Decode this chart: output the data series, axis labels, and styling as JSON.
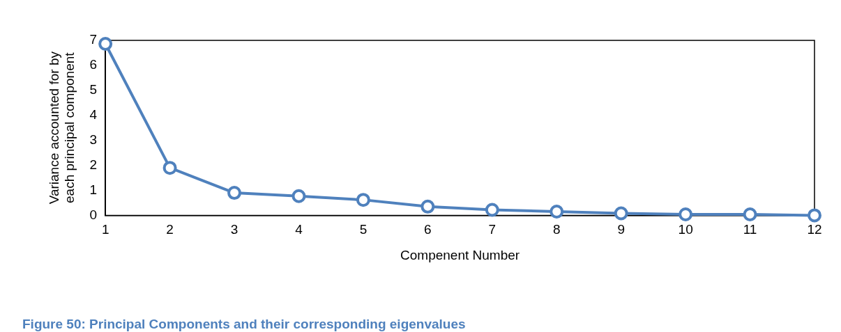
{
  "chart_data": {
    "type": "line",
    "xlabel": "Compenent Number",
    "ylabel": "Variance accounted for by each principal component",
    "x": [
      1,
      2,
      3,
      4,
      5,
      6,
      7,
      8,
      9,
      10,
      11,
      12
    ],
    "xlim": [
      1,
      12
    ],
    "xticks": [
      1,
      2,
      3,
      4,
      5,
      6,
      7,
      8,
      9,
      10,
      11,
      12
    ],
    "series": [
      {
        "color": "#4f81bd",
        "values": [
          6.86,
          1.9,
          0.9,
          0.77,
          0.62,
          0.35,
          0.22,
          0.15,
          0.08,
          0.04,
          0.04,
          0
        ]
      }
    ],
    "ylim": [
      0,
      7
    ],
    "yticks": [
      0,
      1,
      2,
      3,
      4,
      5,
      6,
      7
    ],
    "grid": false,
    "legend": false,
    "marker": "circle",
    "line_style": "solid",
    "annotations": [
      "Figure 50: Principal Components and their corresponding eigenvalues"
    ]
  }
}
